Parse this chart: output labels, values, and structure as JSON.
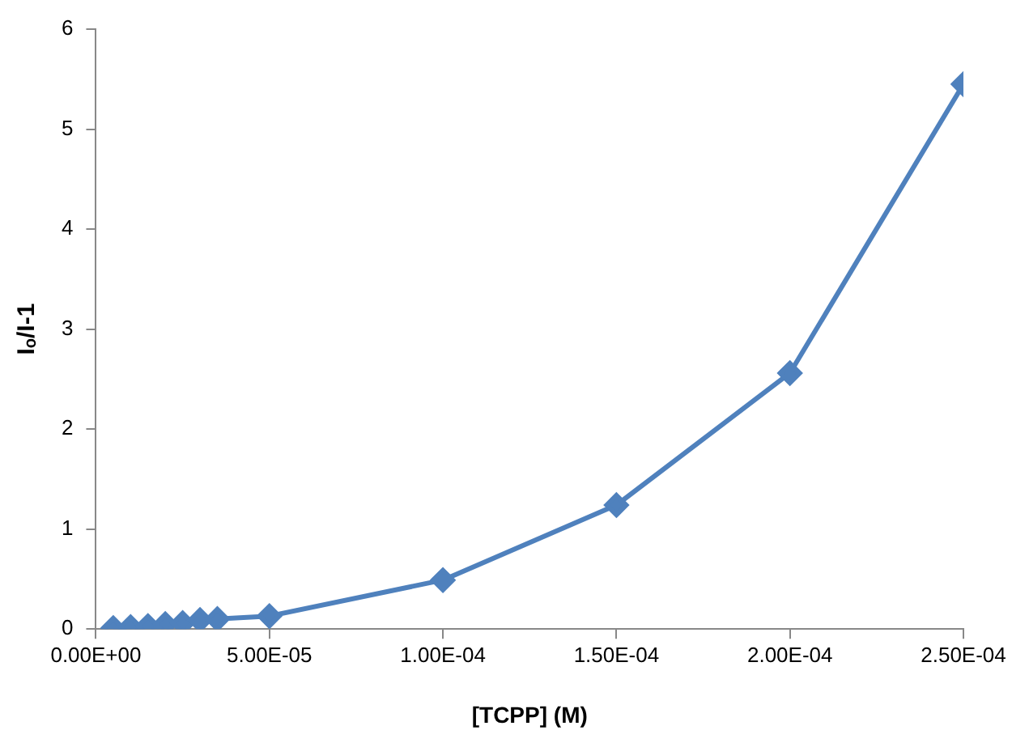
{
  "chart_data": {
    "type": "line",
    "xlabel": "[TCPP] (M)",
    "ylabel": "Iₒ/I-1",
    "x": [
      5e-06,
      1e-05,
      1.5e-05,
      2e-05,
      2.5e-05,
      3e-05,
      3.5e-05,
      5e-05,
      0.0001,
      0.00015,
      0.0002,
      0.00025
    ],
    "series": [
      {
        "color": "#4f81bd",
        "values": [
          0.01,
          0.02,
          0.03,
          0.05,
          0.06,
          0.09,
          0.1,
          0.13,
          0.49,
          1.24,
          2.56,
          5.45
        ]
      }
    ],
    "xlim": [
      0,
      0.00025
    ],
    "xticks": [
      {
        "value": 0,
        "label": "0.00E+00"
      },
      {
        "value": 5e-05,
        "label": "5.00E-05"
      },
      {
        "value": 0.0001,
        "label": "1.00E-04"
      },
      {
        "value": 0.00015,
        "label": "1.50E-04"
      },
      {
        "value": 0.0002,
        "label": "2.00E-04"
      },
      {
        "value": 0.00025,
        "label": "2.50E-04"
      }
    ],
    "ylim": [
      0,
      6
    ],
    "yticks": [
      0,
      1,
      2,
      3,
      4,
      5,
      6
    ],
    "grid": false,
    "legend": false,
    "marker": "diamond",
    "line_style": "solid"
  }
}
